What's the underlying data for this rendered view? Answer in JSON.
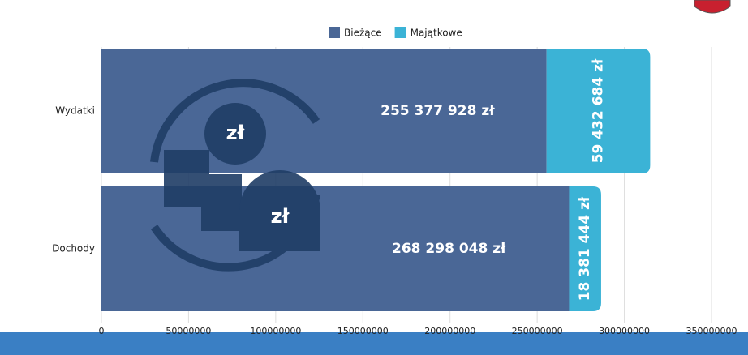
{
  "chart_data": {
    "type": "stacked_barh",
    "categories": [
      "Wydatki",
      "Dochody"
    ],
    "series": [
      {
        "name": "Bieżące",
        "color": "#4a6796",
        "values": [
          255377928,
          268298048
        ],
        "value_labels": [
          "255 377 928 zł",
          "268 298 048 zł"
        ]
      },
      {
        "name": "Majątkowe",
        "color": "#3bb3d6",
        "values": [
          59432684,
          18381444
        ],
        "value_labels": [
          "59 432 684 zł",
          "18 381 444 zł"
        ]
      }
    ],
    "xlim": [
      0,
      350000000
    ],
    "xticks": [
      0,
      50000000,
      100000000,
      150000000,
      200000000,
      250000000,
      300000000,
      350000000
    ],
    "grid": true,
    "legend": "top",
    "annotations": [
      "zł",
      "zł"
    ]
  }
}
